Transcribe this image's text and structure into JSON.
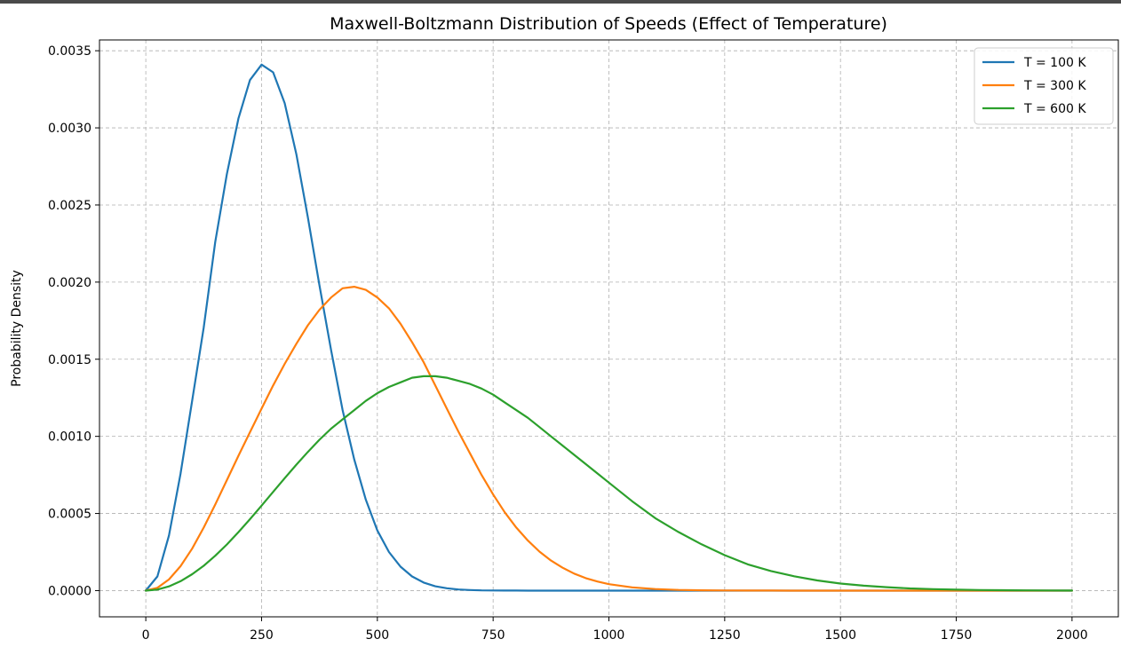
{
  "chart_data": {
    "type": "line",
    "title": "Maxwell-Boltzmann Distribution of Speeds (Effect of Temperature)",
    "xlabel": "",
    "ylabel": "Probability Density",
    "xlim": [
      -100,
      2100
    ],
    "ylim": [
      -0.00017,
      0.00357
    ],
    "xticks": [
      0,
      250,
      500,
      750,
      1000,
      1250,
      1500,
      1750,
      2000
    ],
    "xtick_labels": [
      "0",
      "250",
      "500",
      "750",
      "1000",
      "1250",
      "1500",
      "1750",
      "2000"
    ],
    "yticks": [
      0,
      0.0005,
      0.001,
      0.0015,
      0.002,
      0.0025,
      0.003,
      0.0035
    ],
    "ytick_labels": [
      "0.0000",
      "0.0005",
      "0.0010",
      "0.0015",
      "0.0020",
      "0.0025",
      "0.0030",
      "0.0035"
    ],
    "grid": true,
    "legend_position": "top-right",
    "x": [
      0,
      25,
      50,
      75,
      100,
      125,
      150,
      175,
      200,
      225,
      250,
      275,
      300,
      325,
      350,
      375,
      400,
      425,
      450,
      475,
      500,
      525,
      550,
      575,
      600,
      625,
      650,
      675,
      700,
      725,
      750,
      775,
      800,
      825,
      850,
      875,
      900,
      925,
      950,
      975,
      1000,
      1050,
      1100,
      1150,
      1200,
      1250,
      1300,
      1350,
      1400,
      1450,
      1500,
      1550,
      1600,
      1650,
      1700,
      1750,
      1800,
      1850,
      1900,
      1950,
      2000
    ],
    "series": [
      {
        "name": "T = 100 K",
        "color": "#1f77b4",
        "values": [
          0,
          9.2e-05,
          0.000357,
          0.000756,
          0.00123,
          0.001704,
          0.00226,
          0.0027,
          0.00306,
          0.00331,
          0.00341,
          0.00336,
          0.00316,
          0.00283,
          0.00242,
          0.00198,
          0.00156,
          0.00117,
          0.00085,
          0.00059,
          0.00039,
          0.00025,
          0.000155,
          9.2e-05,
          5.2e-05,
          2.8e-05,
          1.5e-05,
          7.5e-06,
          3.6e-06,
          1.7e-06,
          8e-07,
          3e-07,
          1e-07,
          0,
          0,
          0,
          0,
          0,
          0,
          0,
          0,
          0,
          0,
          0,
          0,
          0,
          0,
          0,
          0,
          0,
          0,
          0,
          0,
          0,
          0,
          0,
          0,
          0,
          0,
          0,
          0
        ]
      },
      {
        "name": "T = 300 K",
        "color": "#ff7f0e",
        "values": [
          0,
          1.8e-05,
          7.2e-05,
          0.000158,
          0.000272,
          0.000408,
          0.000558,
          0.000716,
          0.000874,
          0.001027,
          0.00118,
          0.00133,
          0.00147,
          0.0016,
          0.00172,
          0.00182,
          0.0019,
          0.00196,
          0.00197,
          0.00195,
          0.0019,
          0.00183,
          0.00173,
          0.00161,
          0.00148,
          0.00133,
          0.00118,
          0.00103,
          0.00089,
          0.00075,
          0.000623,
          0.000508,
          0.000409,
          0.000324,
          0.000253,
          0.000195,
          0.000148,
          0.00011,
          8.1e-05,
          5.9e-05,
          4.2e-05,
          2.1e-05,
          9.9e-06,
          4.4e-06,
          1.8e-06,
          7e-07,
          3e-07,
          1e-07,
          0,
          0,
          0,
          0,
          0,
          0,
          0,
          0,
          0,
          0,
          0,
          0,
          0
        ]
      },
      {
        "name": "T = 600 K",
        "color": "#2ca02c",
        "values": [
          0,
          6.9e-06,
          2.76e-05,
          6.1e-05,
          0.000106,
          0.000161,
          0.000226,
          0.000299,
          0.000379,
          0.000463,
          0.000551,
          0.00064,
          0.000729,
          0.000816,
          0.000899,
          0.000978,
          0.00105,
          0.00111,
          0.00117,
          0.00123,
          0.00128,
          0.00132,
          0.00135,
          0.00138,
          0.00139,
          0.00139,
          0.00138,
          0.00136,
          0.00134,
          0.00131,
          0.00127,
          0.00122,
          0.00117,
          0.00112,
          0.00106,
          0.001,
          0.00094,
          0.00088,
          0.00082,
          0.00076,
          0.0007,
          0.00058,
          0.00047,
          0.00038,
          0.0003,
          0.00023,
          0.00017,
          0.000127,
          9.3e-05,
          6.6e-05,
          4.6e-05,
          3.2e-05,
          2.2e-05,
          1.4e-05,
          9.5e-06,
          6.2e-06,
          4e-06,
          2.5e-06,
          1.6e-06,
          1e-06,
          6e-07
        ]
      }
    ]
  }
}
